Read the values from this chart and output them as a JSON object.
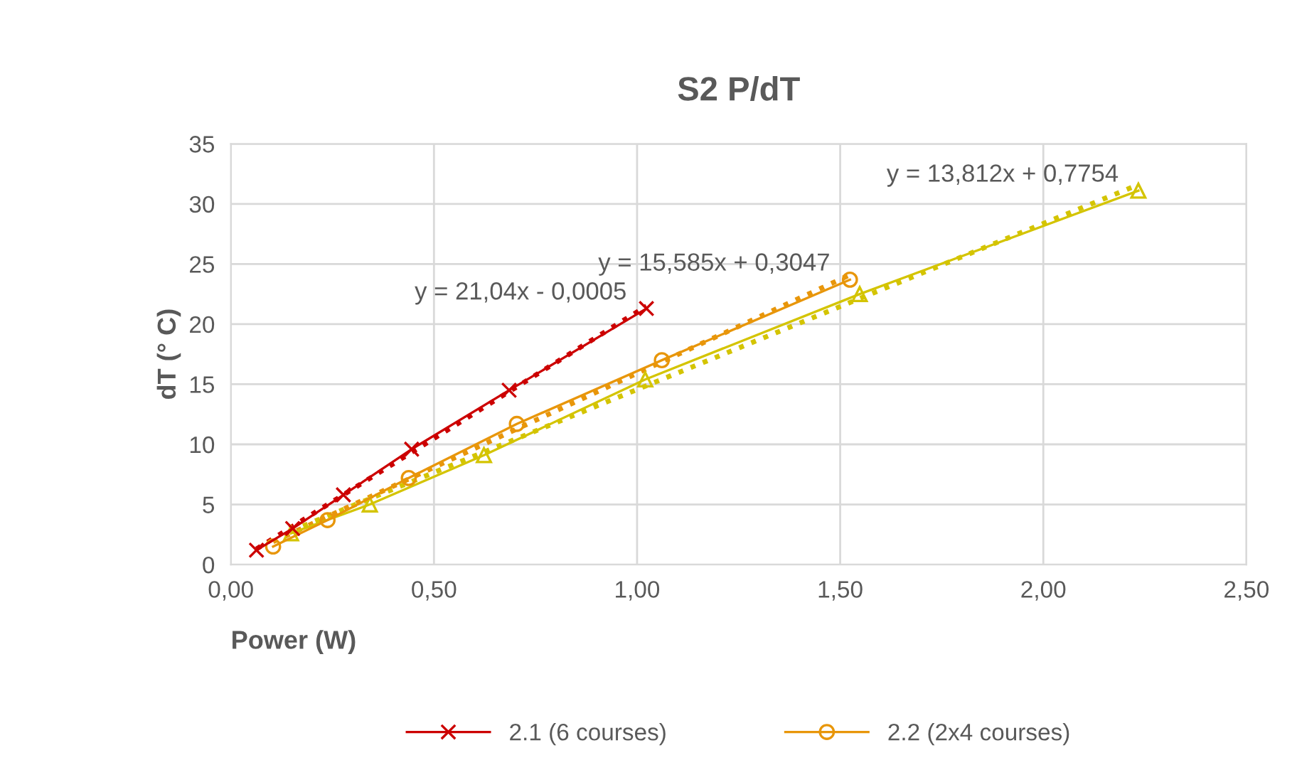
{
  "chart_data": {
    "type": "line",
    "title": "S2 P/dT",
    "xlabel": "Power (W)",
    "ylabel": "dT (° C)",
    "xlim": [
      0,
      2.5
    ],
    "xticks": [
      {
        "value": 0,
        "label": "0,00"
      },
      {
        "value": 0.5,
        "label": "0,50"
      },
      {
        "value": 1,
        "label": "1,00"
      },
      {
        "value": 1.5,
        "label": "1,50"
      },
      {
        "value": 2,
        "label": "2,00"
      },
      {
        "value": 2.5,
        "label": "2,50"
      }
    ],
    "ylim": [
      0,
      35
    ],
    "yticks": [
      0,
      5,
      10,
      15,
      20,
      25,
      30,
      35
    ],
    "grid": true,
    "legend": "bottom",
    "series": [
      {
        "name": "2.1 (6 courses)",
        "color": "#cc0000",
        "marker": "cross",
        "line_style": "solid",
        "x": [
          0.063,
          0.152,
          0.277,
          0.445,
          0.685,
          1.023
        ],
        "values": [
          1.2,
          3.0,
          5.8,
          9.6,
          14.5,
          21.3
        ]
      },
      {
        "name": "2.2 (2x4 courses)",
        "color": "#e8960a",
        "marker": "circle",
        "line_style": "solid",
        "x": [
          0.104,
          0.238,
          0.438,
          0.704,
          1.061,
          1.524
        ],
        "values": [
          1.5,
          3.7,
          7.2,
          11.7,
          17.0,
          23.7
        ]
      },
      {
        "color": "#d4c400",
        "marker": "triangle",
        "line_style": "solid",
        "x": [
          0.148,
          0.342,
          0.623,
          1.02,
          1.548,
          2.234
        ],
        "values": [
          2.6,
          5.0,
          9.1,
          15.4,
          22.5,
          31.1
        ]
      },
      {
        "color": "#cc0000",
        "marker": "none",
        "line_style": "dotted",
        "x": [
          0.063,
          1.023
        ],
        "values": [
          1.3,
          21.5
        ]
      },
      {
        "color": "#e8960a",
        "marker": "none",
        "line_style": "dotted",
        "x": [
          0.104,
          1.524
        ],
        "values": [
          1.9,
          24.1
        ]
      },
      {
        "color": "#d4c400",
        "marker": "none",
        "line_style": "dotted",
        "x": [
          0.148,
          2.234
        ],
        "values": [
          2.8,
          31.6
        ]
      }
    ],
    "annotations": [
      {
        "text": "y = 21,04x - 0,0005",
        "x": 1.023,
        "y": 21.3
      },
      {
        "text": "y = 15,585x + 0,3047",
        "x": 1.524,
        "y": 23.7
      },
      {
        "text": "y = 13,812x + 0,7754",
        "x": 2.234,
        "y": 31.1
      }
    ]
  }
}
